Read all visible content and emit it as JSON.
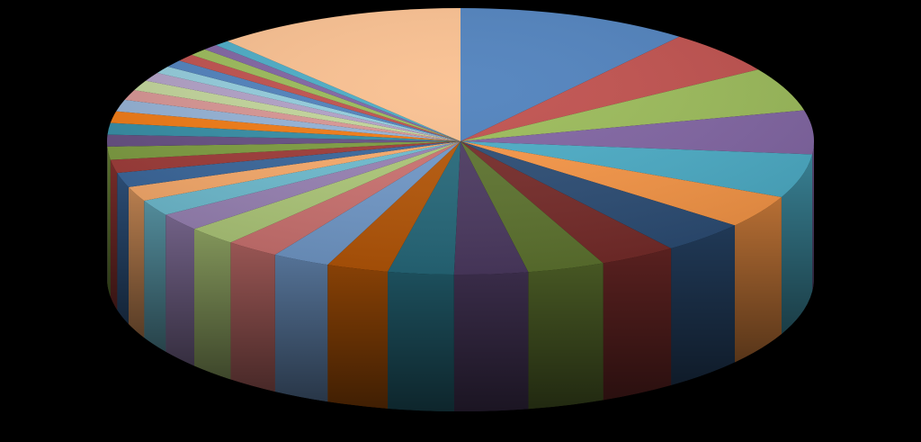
{
  "chart_data": {
    "type": "pie",
    "style": "3d",
    "title": "",
    "legend": "none",
    "data_labels": "none",
    "values": [
      12.0,
      6.0,
      6.0,
      6.0,
      6.0,
      4.5,
      4.5,
      4.0,
      4.0,
      3.8,
      3.4,
      3.2,
      3.0,
      2.8,
      2.6,
      2.4,
      2.2,
      2.0,
      2.0,
      1.8,
      1.8,
      1.6,
      1.6,
      1.6,
      1.6,
      1.4,
      1.4,
      1.2,
      1.0,
      1.0,
      1.0,
      1.0,
      0.8,
      0.8,
      12.94
    ],
    "colors": [
      "#4F81BD",
      "#C0504D",
      "#9BBB59",
      "#8064A2",
      "#4BACC6",
      "#F79646",
      "#2C4D75",
      "#772C2A",
      "#5F7530",
      "#4D3B62",
      "#276A7C",
      "#B65708",
      "#729ACA",
      "#CD7371",
      "#AFC97A",
      "#9983B5",
      "#6FBDD1",
      "#F9AB6B",
      "#3A679C",
      "#9F3B38",
      "#7E9D40",
      "#664F83",
      "#358EA6",
      "#F37B13",
      "#95B3D7",
      "#D99694",
      "#C3D69B",
      "#B2A1C7",
      "#93CDDD",
      "#4F81BD",
      "#C0504D",
      "#9BBB59",
      "#8064A2",
      "#4BACC6",
      "#FAC090"
    ]
  }
}
